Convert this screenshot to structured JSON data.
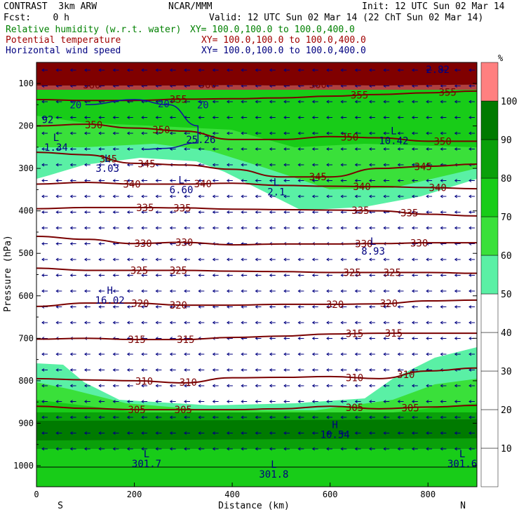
{
  "header": {
    "model": "CONTRAST  3km ARW",
    "fcst": "Fcst:    0 h",
    "center": "NCAR/MMM",
    "init": "Init: 12 UTC Sun 02 Mar 14",
    "valid": "Valid: 12 UTC Sun 02 Mar 14 (22 ChT Sun 02 Mar 14)"
  },
  "legend": [
    {
      "name": "Relative humidity (w.r.t. water)",
      "xy": "XY= 100.0,100.0 to 100.0,400.0",
      "color": "#008000"
    },
    {
      "name": "Potential temperature",
      "xy": "XY= 100.0,100.0 to 100.0,400.0",
      "color": "#a00000"
    },
    {
      "name": "Horizontal wind speed",
      "xy": "XY= 100.0,100.0 to 100.0,400.0",
      "color": "#000080"
    }
  ],
  "chart_data": {
    "type": "heatmap",
    "xlabel": "Distance (km)",
    "ylabel": "Pressure (hPa)",
    "xlim": [
      0,
      900
    ],
    "ylim": [
      1050,
      50
    ],
    "x_ticks": [
      0,
      200,
      400,
      600,
      800
    ],
    "y_ticks": [
      100,
      200,
      300,
      400,
      500,
      600,
      700,
      800,
      900,
      1000
    ],
    "endpoint_labels": {
      "left": "S",
      "right": "N"
    },
    "colorbar": {
      "unit": "%",
      "levels": [
        10,
        20,
        30,
        40,
        50,
        60,
        70,
        80,
        90,
        100
      ],
      "colors": [
        "#ffffff",
        "#ffffff",
        "#ffffff",
        "#ffffff",
        "#ffffff",
        "#5af0a5",
        "#3ae03a",
        "#18cc18",
        "#0aa00a",
        "#007a00",
        "#ff8080"
      ]
    },
    "theta_contours": [
      {
        "value": 360,
        "p": [
          [
            0,
            103
          ],
          [
            100,
            103
          ],
          [
            200,
            103
          ],
          [
            300,
            103
          ],
          [
            400,
            102
          ],
          [
            500,
            103
          ],
          [
            600,
            102
          ],
          [
            700,
            103
          ],
          [
            800,
            102
          ],
          [
            900,
            101
          ]
        ],
        "labels": [
          [
            113,
            360
          ],
          [
            350,
            360
          ],
          [
            575,
            360
          ]
        ]
      },
      {
        "value": 355,
        "p": [
          [
            0,
            138
          ],
          [
            100,
            140
          ],
          [
            200,
            140
          ],
          [
            300,
            137
          ],
          [
            400,
            136
          ],
          [
            500,
            134
          ],
          [
            600,
            130
          ],
          [
            700,
            126
          ],
          [
            800,
            122
          ],
          [
            900,
            118
          ]
        ],
        "labels": [
          [
            290,
            355
          ],
          [
            660,
            355
          ],
          [
            840,
            355
          ]
        ]
      },
      {
        "value": 350,
        "p": [
          [
            0,
            200
          ],
          [
            100,
            196
          ],
          [
            200,
            205
          ],
          [
            300,
            212
          ],
          [
            400,
            232
          ],
          [
            500,
            232
          ],
          [
            600,
            225
          ],
          [
            700,
            228
          ],
          [
            800,
            236
          ],
          [
            900,
            236
          ]
        ],
        "labels": [
          [
            117,
            350
          ],
          [
            255,
            350
          ],
          [
            640,
            350
          ],
          [
            830,
            350
          ]
        ]
      },
      {
        "value": 345,
        "p": [
          [
            0,
            262
          ],
          [
            100,
            268
          ],
          [
            200,
            288
          ],
          [
            300,
            292
          ],
          [
            400,
            302
          ],
          [
            500,
            320
          ],
          [
            600,
            320
          ],
          [
            700,
            300
          ],
          [
            800,
            295
          ],
          [
            900,
            290
          ]
        ],
        "labels": [
          [
            147,
            345
          ],
          [
            225,
            345
          ],
          [
            575,
            345
          ],
          [
            790,
            345
          ]
        ]
      },
      {
        "value": 340,
        "p": [
          [
            0,
            337
          ],
          [
            100,
            333
          ],
          [
            200,
            337
          ],
          [
            300,
            337
          ],
          [
            400,
            335
          ],
          [
            500,
            340
          ],
          [
            600,
            342
          ],
          [
            700,
            343
          ],
          [
            800,
            345
          ],
          [
            900,
            348
          ]
        ],
        "labels": [
          [
            195,
            340
          ],
          [
            340,
            340
          ],
          [
            665,
            340
          ],
          [
            820,
            340
          ]
        ]
      },
      {
        "value": 335,
        "p": [
          [
            0,
            395
          ],
          [
            100,
            392
          ],
          [
            200,
            392
          ],
          [
            300,
            393
          ],
          [
            400,
            396
          ],
          [
            500,
            397
          ],
          [
            600,
            398
          ],
          [
            700,
            400
          ],
          [
            800,
            408
          ],
          [
            900,
            412
          ]
        ],
        "labels": [
          [
            222,
            335
          ],
          [
            298,
            335
          ],
          [
            662,
            335
          ],
          [
            762,
            335
          ]
        ]
      },
      {
        "value": 330,
        "p": [
          [
            0,
            460
          ],
          [
            100,
            467
          ],
          [
            200,
            477
          ],
          [
            300,
            474
          ],
          [
            400,
            480
          ],
          [
            500,
            478
          ],
          [
            600,
            478
          ],
          [
            700,
            477
          ],
          [
            800,
            475
          ],
          [
            900,
            475
          ]
        ],
        "labels": [
          [
            218,
            330
          ],
          [
            302,
            330
          ],
          [
            669,
            330
          ],
          [
            782,
            330
          ]
        ]
      },
      {
        "value": 325,
        "p": [
          [
            0,
            535
          ],
          [
            100,
            540
          ],
          [
            200,
            540
          ],
          [
            300,
            540
          ],
          [
            400,
            542
          ],
          [
            500,
            543
          ],
          [
            600,
            545
          ],
          [
            700,
            545
          ],
          [
            800,
            545
          ],
          [
            900,
            547
          ]
        ],
        "labels": [
          [
            210,
            325
          ],
          [
            290,
            325
          ],
          [
            645,
            325
          ],
          [
            727,
            325
          ]
        ]
      },
      {
        "value": 320,
        "p": [
          [
            0,
            625
          ],
          [
            100,
            617
          ],
          [
            200,
            617
          ],
          [
            300,
            622
          ],
          [
            400,
            622
          ],
          [
            500,
            620
          ],
          [
            600,
            620
          ],
          [
            700,
            619
          ],
          [
            800,
            612
          ],
          [
            900,
            610
          ]
        ],
        "labels": [
          [
            212,
            320
          ],
          [
            290,
            320
          ],
          [
            610,
            320
          ],
          [
            720,
            320
          ]
        ]
      },
      {
        "value": 315,
        "p": [
          [
            0,
            702
          ],
          [
            100,
            700
          ],
          [
            200,
            703
          ],
          [
            300,
            703
          ],
          [
            400,
            698
          ],
          [
            500,
            695
          ],
          [
            600,
            690
          ],
          [
            700,
            688
          ],
          [
            800,
            688
          ],
          [
            900,
            688
          ]
        ],
        "labels": [
          [
            205,
            315
          ],
          [
            305,
            315
          ],
          [
            650,
            315
          ],
          [
            730,
            315
          ]
        ]
      },
      {
        "value": 310,
        "p": [
          [
            0,
            795
          ],
          [
            100,
            798
          ],
          [
            200,
            800
          ],
          [
            300,
            805
          ],
          [
            400,
            793
          ],
          [
            500,
            792
          ],
          [
            600,
            790
          ],
          [
            700,
            795
          ],
          [
            800,
            777
          ],
          [
            900,
            770
          ]
        ],
        "labels": [
          [
            220,
            310
          ],
          [
            310,
            310
          ],
          [
            650,
            310
          ],
          [
            755,
            310
          ]
        ]
      },
      {
        "value": 305,
        "p": [
          [
            0,
            860
          ],
          [
            100,
            865
          ],
          [
            200,
            868
          ],
          [
            300,
            868
          ],
          [
            400,
            868
          ],
          [
            500,
            866
          ],
          [
            600,
            860
          ],
          [
            700,
            866
          ],
          [
            800,
            862
          ],
          [
            900,
            858
          ]
        ],
        "labels": [
          [
            205,
            305
          ],
          [
            300,
            305
          ],
          [
            650,
            305
          ],
          [
            764,
            305
          ]
        ]
      }
    ],
    "wind_contours": [
      {
        "value": 20,
        "p": [
          [
            100,
            150
          ],
          [
            200,
            138
          ],
          [
            270,
            150
          ],
          [
            330,
            200
          ],
          [
            330,
            240
          ],
          [
            260,
            253
          ],
          [
            220,
            255
          ]
        ],
        "labels": [
          [
            80,
            20
          ],
          [
            260,
            20
          ],
          [
            340,
            20
          ]
        ]
      }
    ],
    "extrema": [
      {
        "type": "L",
        "x": 40,
        "p": 235,
        "value": "1.34"
      },
      {
        "type": "L",
        "x": 145,
        "p": 285,
        "value": "3.03"
      },
      {
        "type": "L",
        "x": 296,
        "p": 335,
        "value": "6.60"
      },
      {
        "type": "L",
        "x": 490,
        "p": 340,
        "value": "2.1"
      },
      {
        "type": "L",
        "x": 730,
        "p": 220,
        "value": "10.42"
      },
      {
        "type": "L",
        "x": 688,
        "p": 480,
        "value": "8.93"
      },
      {
        "type": "H",
        "x": 150,
        "p": 595,
        "value": "16.02"
      },
      {
        "type": "H",
        "x": 610,
        "p": 912,
        "value": "10.54"
      },
      {
        "type": "L",
        "x": 225,
        "p": 980,
        "value": "301.7"
      },
      {
        "type": "L",
        "x": 485,
        "p": 1005,
        "value": "301.8"
      },
      {
        "type": "L",
        "x": 870,
        "p": 980,
        "value": "301.6"
      }
    ],
    "misc_labels": [
      {
        "x": 5,
        "p": 193,
        "text": "92"
      },
      {
        "x": 300,
        "p": 240,
        "text": "25.26"
      },
      {
        "x": 790,
        "p": 75,
        "text": "2.82"
      }
    ]
  }
}
